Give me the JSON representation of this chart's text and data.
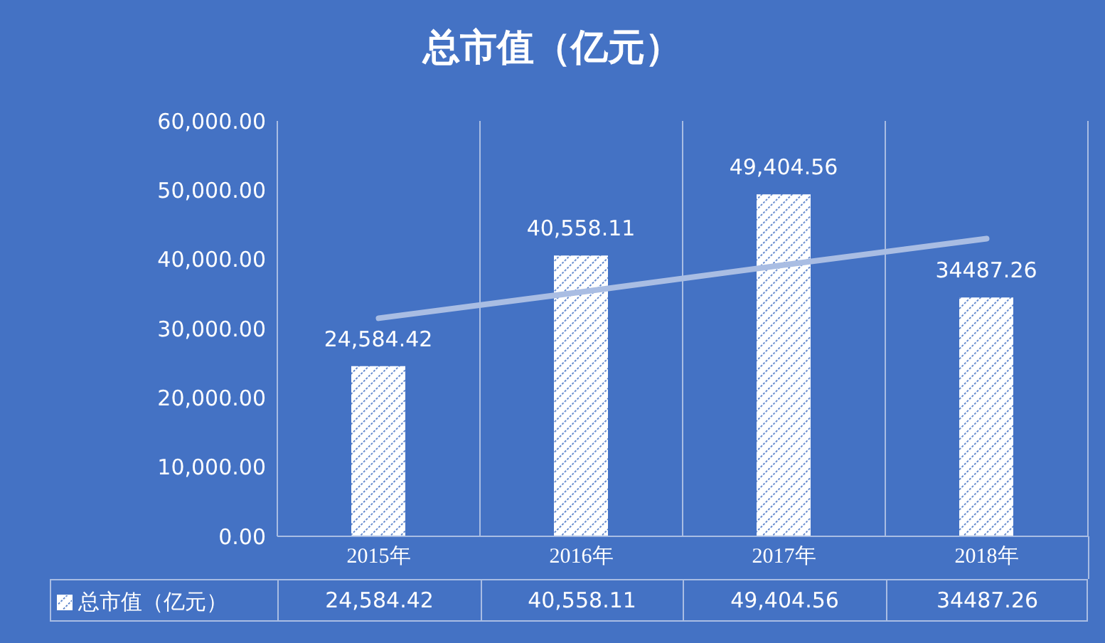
{
  "chart_data": {
    "type": "bar",
    "title": "总市值（亿元）",
    "categories": [
      "2015年",
      "2016年",
      "2017年",
      "2018年"
    ],
    "series": [
      {
        "name": "总市值（亿元）",
        "color": "#ffffff",
        "values": [
          24584.42,
          40558.11,
          49404.56,
          34487.26
        ],
        "value_labels": [
          "24,584.42",
          "40,558.11",
          "49,404.56",
          "34487.26"
        ]
      },
      {
        "type": "line",
        "color": "#a9bde3",
        "values": [
          31500,
          35300,
          39200,
          43000
        ],
        "marker": "none"
      }
    ],
    "ylim": [
      0,
      60000
    ],
    "yticks": [
      {
        "value": 0,
        "label": "0.00"
      },
      {
        "value": 10000,
        "label": "10,000.00"
      },
      {
        "value": 20000,
        "label": "20,000.00"
      },
      {
        "value": 30000,
        "label": "30,000.00"
      },
      {
        "value": 40000,
        "label": "40,000.00"
      },
      {
        "value": 50000,
        "label": "50,000.00"
      },
      {
        "value": 60000,
        "label": "60,000.00"
      }
    ],
    "grid": "x",
    "legend": "bottom"
  }
}
